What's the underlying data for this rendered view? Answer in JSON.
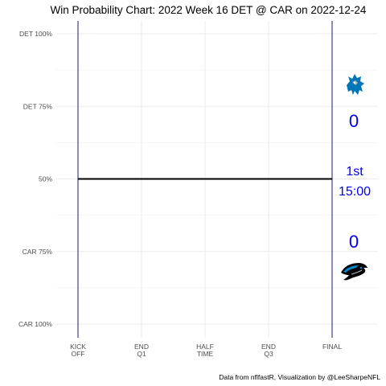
{
  "chart_data": {
    "type": "line",
    "title": "Win Probability Chart: 2022 Week 16 DET @ CAR on 2022-12-24",
    "y_tick_labels": [
      "DET 100%",
      "DET 75%",
      "50%",
      "CAR 75%",
      "CAR 100%"
    ],
    "y_tick_values": [
      1.0,
      0.75,
      0.5,
      0.25,
      0.0
    ],
    "ylim": [
      0,
      1
    ],
    "x_tick_labels": [
      [
        "KICK",
        "OFF"
      ],
      [
        "END",
        "Q1"
      ],
      [
        "HALF",
        "TIME"
      ],
      [
        "END",
        "Q3"
      ],
      [
        "FINAL"
      ]
    ],
    "x_tick_values": [
      0,
      900,
      1800,
      2700,
      3600
    ],
    "xlim": [
      0,
      3600
    ],
    "series": [
      {
        "values": [
          [
            0,
            0.5
          ],
          [
            3600,
            0.5
          ]
        ],
        "color": "#000000"
      }
    ],
    "grid": true,
    "annotations": {
      "away_team_logo": "lions-logo",
      "home_team_logo": "panthers-logo",
      "away_score": "0",
      "home_score": "0",
      "quarter": "1st",
      "clock": "15:00",
      "text_color": "#0000ee"
    },
    "caption": "Data from nflfastR, Visualization by @LeeSharpeNFL"
  },
  "colors": {
    "lions_blue": "#0076b6",
    "panthers_blue": "#0085ca",
    "gridline": "#ebebeb",
    "vline": "#191970"
  }
}
